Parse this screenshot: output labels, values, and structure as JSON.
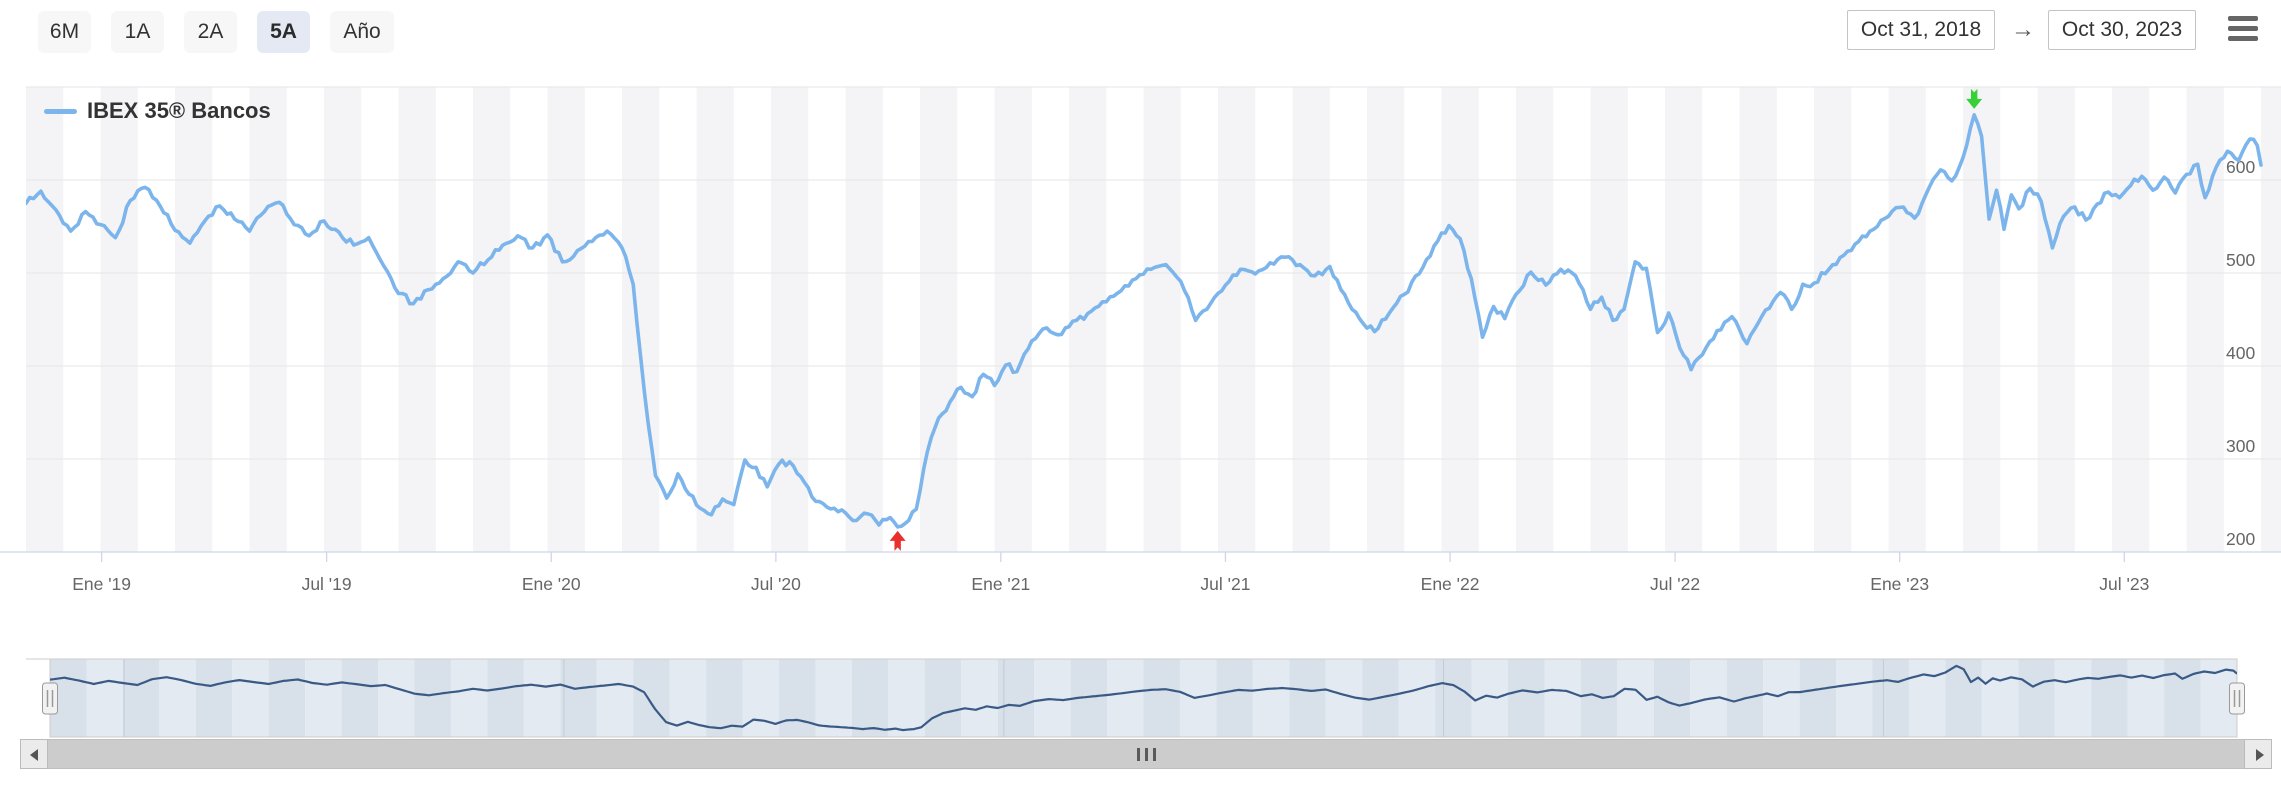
{
  "toolbar": {
    "range_buttons": [
      {
        "label": "6M",
        "selected": false
      },
      {
        "label": "1A",
        "selected": false
      },
      {
        "label": "2A",
        "selected": false
      },
      {
        "label": "5A",
        "selected": true
      },
      {
        "label": "Año",
        "selected": false
      }
    ],
    "date_from": "Oct 31, 2018",
    "date_to": "Oct 30, 2023",
    "arrow": "→",
    "menu_icon": "hamburger-menu-icon"
  },
  "legend": {
    "series_label": "IBEX 35® Bancos",
    "swatch_color": "#7cb5ec"
  },
  "colors": {
    "series": "#7cb5ec",
    "grid": "#e6e6e6",
    "axis_line": "#ccd6eb",
    "band_shade": "#f4f4f6",
    "tick_text": "#666666",
    "nav_series": "#3a5a86",
    "nav_band_dark": "#d8e0ea",
    "nav_band_light": "#e4eaf1",
    "nav_grid": "#c2cad4",
    "min_marker": "#e8312e",
    "max_marker": "#38d038"
  },
  "chart_data": {
    "type": "line",
    "title": "",
    "xlabel": "",
    "ylabel": "",
    "x_unit": "months since 2018-10-31",
    "x_range": [
      0,
      60
    ],
    "ylim": [
      200,
      700
    ],
    "y_ticks": [
      200,
      300,
      400,
      500,
      600
    ],
    "grid": true,
    "legend_position": "top-left",
    "x_ticks": [
      {
        "label": "Ene '19",
        "m": 2.03
      },
      {
        "label": "Jul '19",
        "m": 8.07
      },
      {
        "label": "Ene '20",
        "m": 14.1
      },
      {
        "label": "Jul '20",
        "m": 20.13
      },
      {
        "label": "Ene '21",
        "m": 26.17
      },
      {
        "label": "Jul '21",
        "m": 32.2
      },
      {
        "label": "Ene '22",
        "m": 38.23
      },
      {
        "label": "Jul '22",
        "m": 44.27
      },
      {
        "label": "Ene '23",
        "m": 50.3
      },
      {
        "label": "Jul '23",
        "m": 56.33
      }
    ],
    "series": [
      {
        "name": "IBEX 35® Bancos",
        "color": "#7cb5ec",
        "points": [
          [
            0,
            575
          ],
          [
            0.4,
            588
          ],
          [
            0.8,
            568
          ],
          [
            1.2,
            545
          ],
          [
            1.6,
            566
          ],
          [
            2.0,
            552
          ],
          [
            2.4,
            538
          ],
          [
            2.8,
            578
          ],
          [
            3.2,
            592
          ],
          [
            3.6,
            572
          ],
          [
            4.0,
            546
          ],
          [
            4.4,
            532
          ],
          [
            4.8,
            556
          ],
          [
            5.2,
            572
          ],
          [
            5.6,
            558
          ],
          [
            6.0,
            545
          ],
          [
            6.4,
            566
          ],
          [
            6.8,
            576
          ],
          [
            7.2,
            552
          ],
          [
            7.6,
            540
          ],
          [
            8.0,
            556
          ],
          [
            8.4,
            544
          ],
          [
            8.8,
            530
          ],
          [
            9.2,
            538
          ],
          [
            9.6,
            508
          ],
          [
            10.0,
            478
          ],
          [
            10.4,
            467
          ],
          [
            10.8,
            482
          ],
          [
            11.2,
            494
          ],
          [
            11.6,
            512
          ],
          [
            12.0,
            500
          ],
          [
            12.4,
            514
          ],
          [
            12.8,
            530
          ],
          [
            13.2,
            540
          ],
          [
            13.6,
            527
          ],
          [
            14.0,
            541
          ],
          [
            14.4,
            512
          ],
          [
            14.8,
            524
          ],
          [
            15.2,
            534
          ],
          [
            15.6,
            545
          ],
          [
            16.0,
            527
          ],
          [
            16.3,
            488
          ],
          [
            16.6,
            372
          ],
          [
            16.9,
            282
          ],
          [
            17.2,
            258
          ],
          [
            17.5,
            284
          ],
          [
            17.8,
            262
          ],
          [
            18.1,
            247
          ],
          [
            18.4,
            240
          ],
          [
            18.7,
            257
          ],
          [
            19.0,
            251
          ],
          [
            19.3,
            299
          ],
          [
            19.6,
            291
          ],
          [
            19.9,
            270
          ],
          [
            20.2,
            294
          ],
          [
            20.5,
            297
          ],
          [
            20.8,
            281
          ],
          [
            21.1,
            259
          ],
          [
            21.4,
            252
          ],
          [
            21.7,
            247
          ],
          [
            22.0,
            242
          ],
          [
            22.3,
            234
          ],
          [
            22.6,
            241
          ],
          [
            22.9,
            229
          ],
          [
            23.2,
            237
          ],
          [
            23.4,
            227
          ],
          [
            23.7,
            234
          ],
          [
            23.9,
            246
          ],
          [
            24.2,
            308
          ],
          [
            24.5,
            344
          ],
          [
            24.8,
            361
          ],
          [
            25.1,
            377
          ],
          [
            25.4,
            367
          ],
          [
            25.7,
            391
          ],
          [
            26.0,
            379
          ],
          [
            26.3,
            401
          ],
          [
            26.6,
            394
          ],
          [
            27.0,
            427
          ],
          [
            27.4,
            441
          ],
          [
            27.8,
            434
          ],
          [
            28.2,
            449
          ],
          [
            28.6,
            459
          ],
          [
            29.0,
            469
          ],
          [
            29.4,
            481
          ],
          [
            29.8,
            494
          ],
          [
            30.2,
            504
          ],
          [
            30.6,
            509
          ],
          [
            31.0,
            491
          ],
          [
            31.4,
            449
          ],
          [
            31.8,
            467
          ],
          [
            32.2,
            487
          ],
          [
            32.6,
            504
          ],
          [
            33.0,
            499
          ],
          [
            33.4,
            511
          ],
          [
            33.8,
            517
          ],
          [
            34.2,
            509
          ],
          [
            34.6,
            497
          ],
          [
            35.0,
            507
          ],
          [
            35.4,
            477
          ],
          [
            35.8,
            451
          ],
          [
            36.2,
            437
          ],
          [
            36.6,
            457
          ],
          [
            37.0,
            477
          ],
          [
            37.4,
            499
          ],
          [
            37.8,
            529
          ],
          [
            38.2,
            551
          ],
          [
            38.5,
            537
          ],
          [
            38.8,
            494
          ],
          [
            39.1,
            431
          ],
          [
            39.4,
            464
          ],
          [
            39.7,
            451
          ],
          [
            40.0,
            477
          ],
          [
            40.4,
            501
          ],
          [
            40.8,
            487
          ],
          [
            41.2,
            504
          ],
          [
            41.6,
            497
          ],
          [
            42.0,
            461
          ],
          [
            42.3,
            474
          ],
          [
            42.6,
            449
          ],
          [
            42.9,
            461
          ],
          [
            43.2,
            512
          ],
          [
            43.5,
            505
          ],
          [
            43.8,
            436
          ],
          [
            44.1,
            457
          ],
          [
            44.4,
            419
          ],
          [
            44.7,
            396
          ],
          [
            45.0,
            412
          ],
          [
            45.4,
            438
          ],
          [
            45.8,
            453
          ],
          [
            46.2,
            424
          ],
          [
            46.5,
            446
          ],
          [
            46.8,
            462
          ],
          [
            47.1,
            479
          ],
          [
            47.4,
            461
          ],
          [
            47.7,
            488
          ],
          [
            48.0,
            489
          ],
          [
            48.4,
            504
          ],
          [
            48.8,
            519
          ],
          [
            49.2,
            534
          ],
          [
            49.6,
            547
          ],
          [
            50.0,
            561
          ],
          [
            50.4,
            571
          ],
          [
            50.7,
            559
          ],
          [
            51.0,
            584
          ],
          [
            51.4,
            611
          ],
          [
            51.7,
            599
          ],
          [
            52.0,
            624
          ],
          [
            52.3,
            670
          ],
          [
            52.5,
            647
          ],
          [
            52.7,
            558
          ],
          [
            52.9,
            589
          ],
          [
            53.1,
            547
          ],
          [
            53.3,
            584
          ],
          [
            53.5,
            569
          ],
          [
            53.8,
            591
          ],
          [
            54.1,
            577
          ],
          [
            54.4,
            527
          ],
          [
            54.7,
            561
          ],
          [
            55.0,
            571
          ],
          [
            55.3,
            557
          ],
          [
            55.6,
            574
          ],
          [
            55.9,
            587
          ],
          [
            56.2,
            581
          ],
          [
            56.5,
            594
          ],
          [
            56.8,
            604
          ],
          [
            57.1,
            589
          ],
          [
            57.4,
            603
          ],
          [
            57.7,
            586
          ],
          [
            58.0,
            606
          ],
          [
            58.3,
            617
          ],
          [
            58.5,
            581
          ],
          [
            58.8,
            614
          ],
          [
            59.1,
            631
          ],
          [
            59.4,
            621
          ],
          [
            59.7,
            644
          ],
          [
            59.9,
            637
          ],
          [
            60.0,
            616
          ]
        ]
      }
    ],
    "annotations": [
      {
        "name": "low-marker",
        "shape": "arrow-up",
        "color": "#e8312e",
        "m": 23.4,
        "value": 227
      },
      {
        "name": "high-marker",
        "shape": "arrow-down",
        "color": "#38d038",
        "m": 52.3,
        "value": 670
      }
    ],
    "navigator": {
      "shown": true,
      "year_gridlines_m": [
        2.03,
        14.1,
        26.17,
        38.23,
        50.3
      ]
    },
    "scrollbar": {
      "shown": true,
      "grip_icon": "grip-bars-icon",
      "left_icon": "arrow-left-icon",
      "right_icon": "arrow-right-icon"
    }
  }
}
